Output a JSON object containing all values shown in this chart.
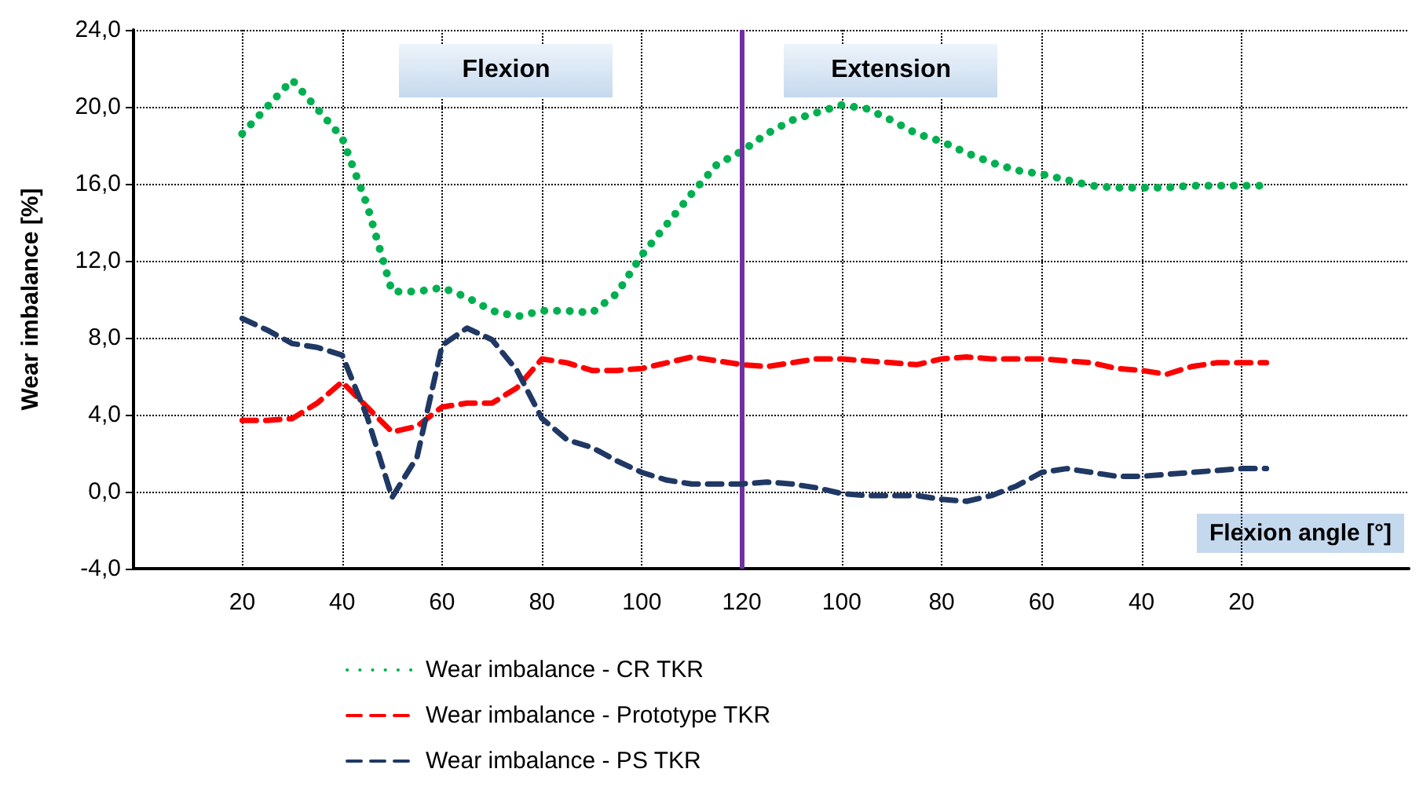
{
  "chart_data": {
    "type": "line",
    "ylabel": "Wear imbalance [%]",
    "xlabel": "Flexion angle [°]",
    "categories": [
      "20",
      null,
      null,
      null,
      "40",
      null,
      null,
      null,
      "60",
      null,
      null,
      null,
      "80",
      null,
      null,
      null,
      "100",
      null,
      null,
      null,
      "120",
      null,
      null,
      null,
      "100",
      null,
      null,
      null,
      "80",
      null,
      null,
      null,
      "60",
      null,
      null,
      null,
      "40",
      null,
      null,
      null,
      "20",
      null
    ],
    "series": [
      {
        "name": "Wear imbalance - CR TKR",
        "color": "#00b050",
        "line_style": "dotted",
        "values": [
          18.6,
          20.0,
          21.4,
          19.9,
          18.4,
          14.9,
          10.4,
          10.4,
          10.6,
          10.1,
          9.4,
          9.1,
          9.4,
          9.4,
          9.3,
          10.3,
          12.3,
          13.9,
          15.5,
          17.0,
          17.7,
          18.6,
          19.3,
          19.7,
          20.1,
          19.9,
          19.3,
          18.6,
          18.2,
          17.6,
          17.1,
          16.7,
          16.5,
          16.2,
          15.9,
          15.8,
          15.8,
          15.8,
          15.9,
          15.9,
          15.9,
          15.9
        ]
      },
      {
        "name": "Wear imbalance - Prototype TKR",
        "color": "#ff0000",
        "line_style": "dashed",
        "values": [
          3.7,
          3.7,
          3.8,
          4.6,
          5.7,
          4.4,
          3.1,
          3.4,
          4.4,
          4.6,
          4.6,
          5.4,
          6.9,
          6.7,
          6.3,
          6.3,
          6.4,
          6.7,
          7.0,
          6.8,
          6.6,
          6.5,
          6.7,
          6.9,
          6.9,
          6.8,
          6.7,
          6.6,
          6.9,
          7.0,
          6.9,
          6.9,
          6.9,
          6.8,
          6.7,
          6.4,
          6.3,
          6.1,
          6.5,
          6.7,
          6.7,
          6.7
        ]
      },
      {
        "name": "Wear imbalance - PS TKR",
        "color": "#1f3864",
        "line_style": "dashed",
        "values": [
          9.0,
          8.4,
          7.7,
          7.5,
          7.1,
          3.9,
          -0.3,
          1.8,
          7.6,
          8.5,
          7.9,
          6.3,
          3.8,
          2.7,
          2.3,
          1.6,
          1.0,
          0.6,
          0.4,
          0.4,
          0.4,
          0.5,
          0.4,
          0.2,
          -0.1,
          -0.2,
          -0.2,
          -0.2,
          -0.4,
          -0.5,
          -0.2,
          0.3,
          1.0,
          1.2,
          1.0,
          0.8,
          0.8,
          0.9,
          1.0,
          1.1,
          1.2,
          1.2
        ]
      }
    ],
    "ylim": [
      -4,
      24
    ],
    "yticks": [
      {
        "value": -4,
        "label": "-4,0"
      },
      {
        "value": 0,
        "label": "0,0"
      },
      {
        "value": 4,
        "label": "4,0"
      },
      {
        "value": 8,
        "label": "8,0"
      },
      {
        "value": 12,
        "label": "12,0"
      },
      {
        "value": 16,
        "label": "16,0"
      },
      {
        "value": 20,
        "label": "20,0"
      },
      {
        "value": 24,
        "label": "24,0"
      }
    ],
    "ref_lines": [
      {
        "axis": "x",
        "value": "120",
        "color": "#7030a0",
        "line_style": "solid"
      }
    ],
    "annotations": [
      "Flexion",
      "Extension"
    ],
    "grid": true,
    "legend": "bottom left",
    "marker": "none"
  }
}
